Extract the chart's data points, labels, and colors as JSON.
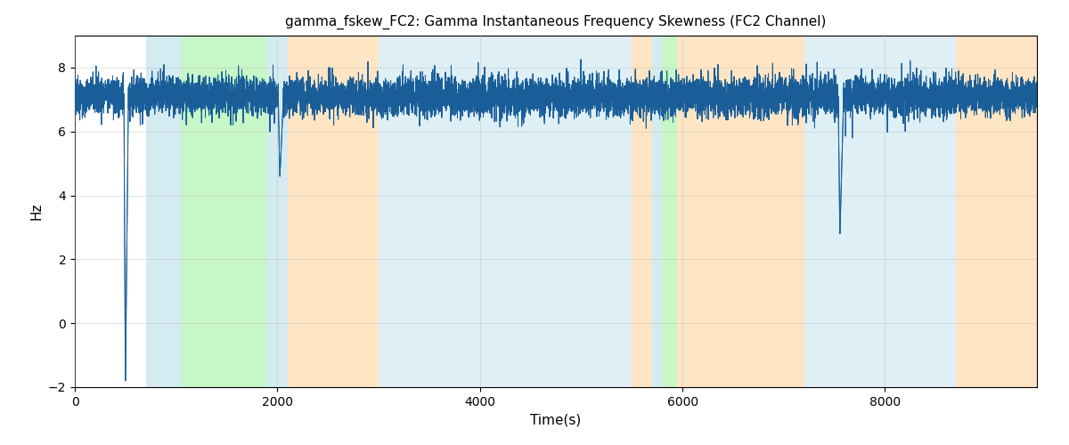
{
  "title": "gamma_fskew_FC2: Gamma Instantaneous Frequency Skewness (FC2 Channel)",
  "xlabel": "Time(s)",
  "ylabel": "Hz",
  "xlim": [
    0,
    9500
  ],
  "ylim": [
    -2,
    9
  ],
  "yticks": [
    -2,
    0,
    2,
    4,
    6,
    8
  ],
  "xticks": [
    0,
    2000,
    4000,
    6000,
    8000
  ],
  "line_color": "#1a5e99",
  "line_width": 0.7,
  "background_color": "#ffffff",
  "grid_color": "#bbbbbb",
  "grid_alpha": 0.6,
  "seed": 42,
  "n_points": 9500,
  "mean_signal": 7.1,
  "std_signal": 0.28,
  "colored_bands": [
    {
      "start": 700,
      "end": 1050,
      "color": "#add8e6",
      "alpha": 0.5
    },
    {
      "start": 1050,
      "end": 1900,
      "color": "#90ee90",
      "alpha": 0.5
    },
    {
      "start": 1900,
      "end": 2100,
      "color": "#add8e6",
      "alpha": 0.5
    },
    {
      "start": 2100,
      "end": 3000,
      "color": "#ffd59e",
      "alpha": 0.6
    },
    {
      "start": 3000,
      "end": 5500,
      "color": "#add8e6",
      "alpha": 0.4
    },
    {
      "start": 5500,
      "end": 5700,
      "color": "#ffd59e",
      "alpha": 0.6
    },
    {
      "start": 5700,
      "end": 5800,
      "color": "#add8e6",
      "alpha": 0.5
    },
    {
      "start": 5800,
      "end": 5950,
      "color": "#90ee90",
      "alpha": 0.5
    },
    {
      "start": 5950,
      "end": 7200,
      "color": "#ffd59e",
      "alpha": 0.6
    },
    {
      "start": 7200,
      "end": 7750,
      "color": "#add8e6",
      "alpha": 0.4
    },
    {
      "start": 7750,
      "end": 8700,
      "color": "#add8e6",
      "alpha": 0.4
    },
    {
      "start": 8700,
      "end": 9500,
      "color": "#ffd59e",
      "alpha": 0.6
    }
  ]
}
